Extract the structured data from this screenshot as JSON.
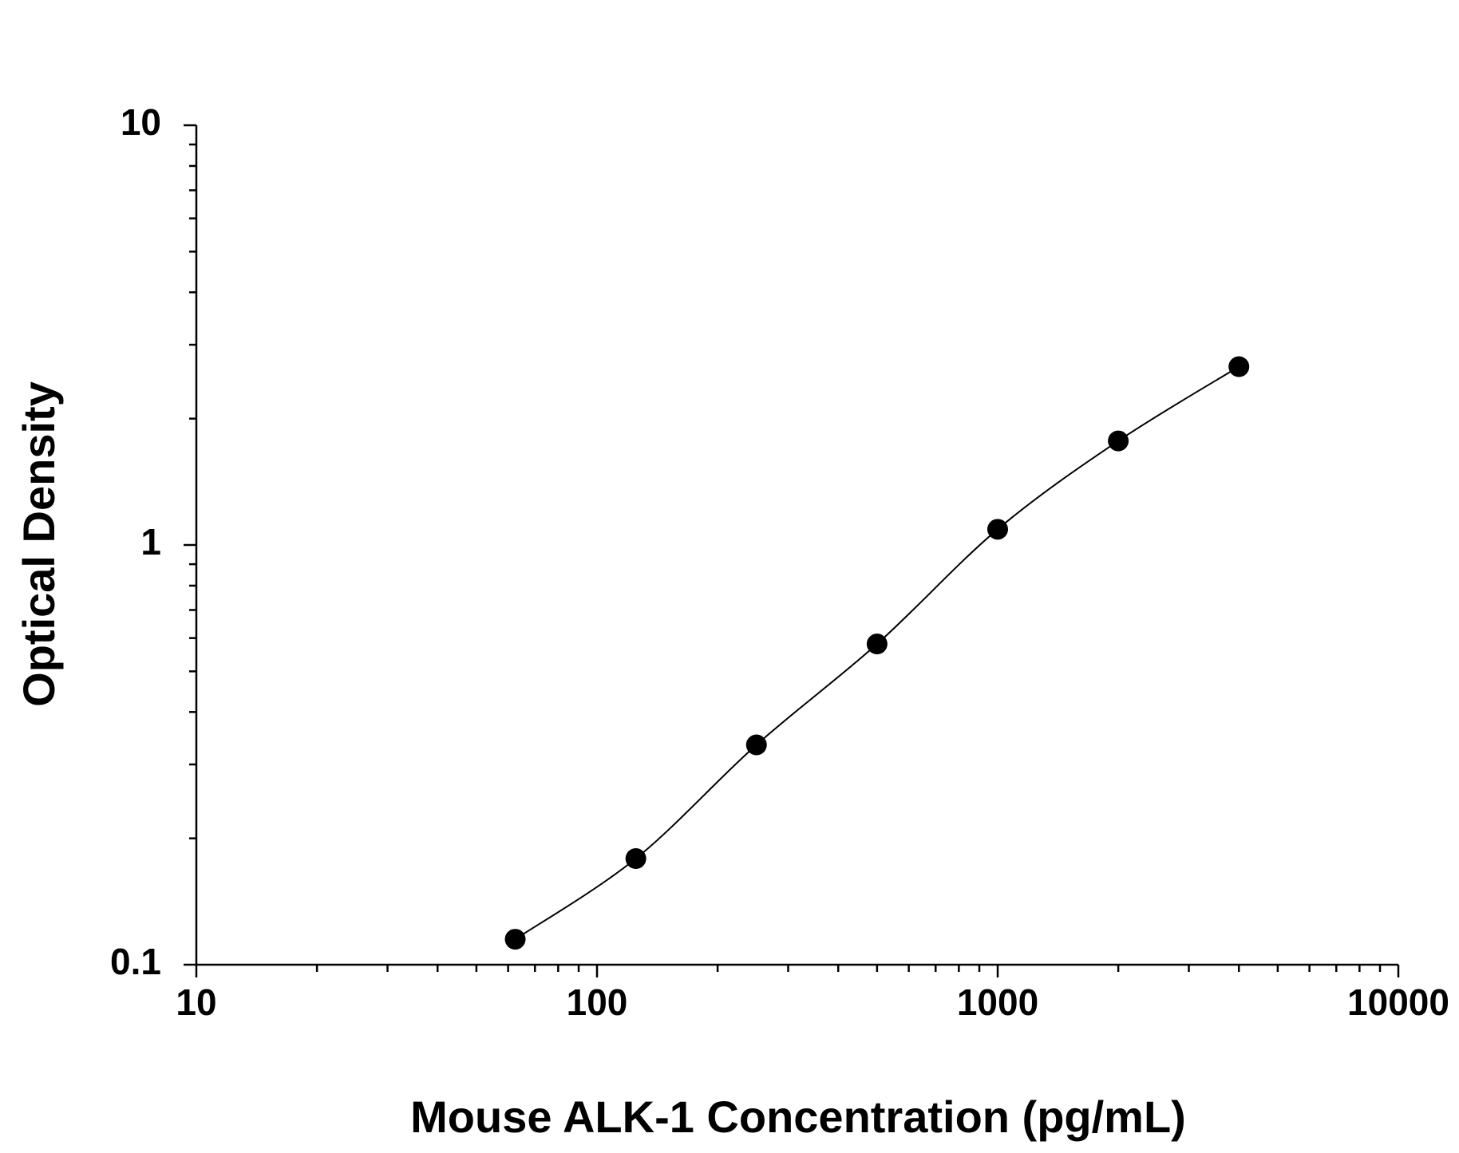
{
  "chart_data": {
    "type": "scatter",
    "xlabel": "Mouse ALK-1 Concentration (pg/mL)",
    "ylabel": "Optical Density",
    "x": [
      62.5,
      125,
      250,
      500,
      1000,
      2000,
      4000
    ],
    "series": [
      {
        "name": "Optical Density",
        "color": "#000000",
        "values": [
          0.115,
          0.179,
          0.334,
          0.581,
          1.09,
          1.77,
          2.66
        ]
      }
    ],
    "xlim": [
      10,
      10000
    ],
    "xticks": [
      10,
      100,
      1000,
      10000
    ],
    "ylim": [
      0.1,
      10
    ],
    "yticks": [
      0.1,
      1,
      10
    ],
    "xscale": "log",
    "yscale": "log",
    "minor_ticks": true,
    "curve": true
  }
}
